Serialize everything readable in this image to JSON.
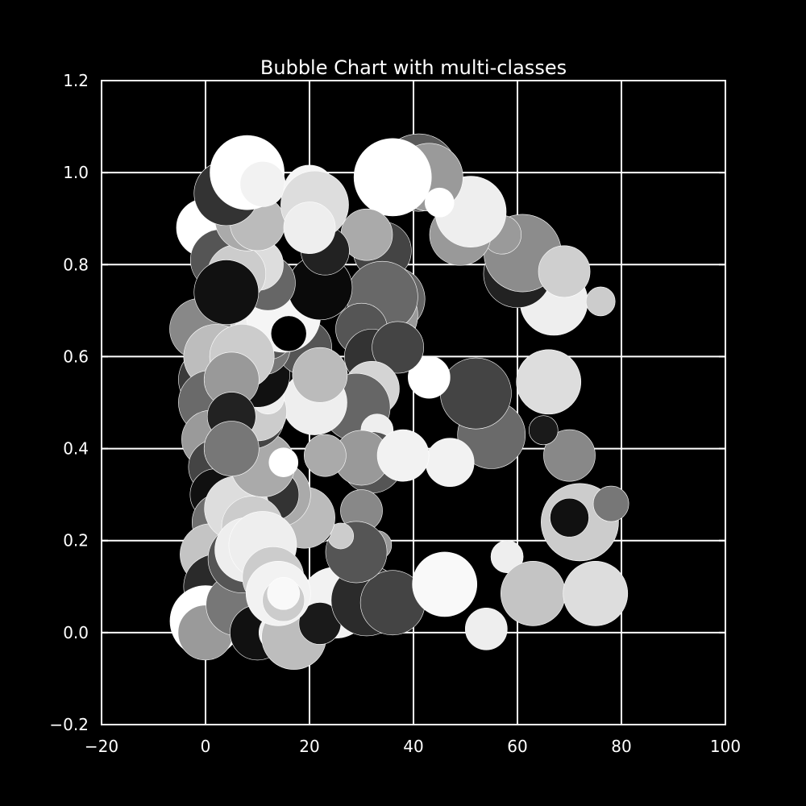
{
  "chart_data": {
    "type": "scatter",
    "title": "Bubble Chart with multi-classes",
    "xlabel": "",
    "ylabel": "",
    "xlim": [
      -20,
      100
    ],
    "ylim": [
      -0.2,
      1.2
    ],
    "xticks": [
      -20,
      0,
      20,
      40,
      60,
      80,
      100
    ],
    "yticks": [
      -0.2,
      0.0,
      0.2,
      0.4,
      0.6,
      0.8,
      1.0,
      1.2
    ],
    "xtick_labels": [
      "−20",
      "0",
      "20",
      "40",
      "60",
      "80",
      "100"
    ],
    "ytick_labels": [
      "−0.2",
      "0.0",
      "0.2",
      "0.4",
      "0.6",
      "0.8",
      "1.0",
      "1.2"
    ],
    "grid": true,
    "background": "#000000",
    "bubble_style": "grayscale fill, thin white edge; size encodes third value",
    "points": [
      {
        "x": 1,
        "y": 0.55,
        "size": 40,
        "gray": "#3a3a3a"
      },
      {
        "x": 0,
        "y": 0.88,
        "size": 36,
        "gray": "#ffffff"
      },
      {
        "x": 3,
        "y": 0.81,
        "size": 38,
        "gray": "#555555"
      },
      {
        "x": 6,
        "y": 0.7,
        "size": 36,
        "gray": "#cfcfcf"
      },
      {
        "x": -1,
        "y": 0.66,
        "size": 38,
        "gray": "#888888"
      },
      {
        "x": 2,
        "y": 0.6,
        "size": 40,
        "gray": "#bdbdbd"
      },
      {
        "x": 1,
        "y": 0.5,
        "size": 40,
        "gray": "#6a6a6a"
      },
      {
        "x": 1,
        "y": 0.42,
        "size": 36,
        "gray": "#9a9a9a"
      },
      {
        "x": 2,
        "y": 0.36,
        "size": 34,
        "gray": "#444444"
      },
      {
        "x": 2,
        "y": 0.3,
        "size": 32,
        "gray": "#101010"
      },
      {
        "x": 3,
        "y": 0.24,
        "size": 36,
        "gray": "#6f6f6f"
      },
      {
        "x": 1,
        "y": 0.17,
        "size": 38,
        "gray": "#c4c4c4"
      },
      {
        "x": 2,
        "y": 0.1,
        "size": 40,
        "gray": "#2a2a2a"
      },
      {
        "x": 0,
        "y": 0.025,
        "size": 44,
        "gray": "#ffffff"
      },
      {
        "x": 0,
        "y": 0.0,
        "size": 34,
        "gray": "#9a9a9a"
      },
      {
        "x": 6,
        "y": 0.06,
        "size": 38,
        "gray": "#777777"
      },
      {
        "x": 10,
        "y": 0.0,
        "size": 34,
        "gray": "#111111"
      },
      {
        "x": 14,
        "y": 0.0,
        "size": 24,
        "gray": "#eeeeee"
      },
      {
        "x": 17,
        "y": -0.01,
        "size": 40,
        "gray": "#bdbdbd"
      },
      {
        "x": 25,
        "y": 0.065,
        "size": 44,
        "gray": "#f2f2f2"
      },
      {
        "x": 22,
        "y": 0.02,
        "size": 26,
        "gray": "#1a1a1a"
      },
      {
        "x": 31,
        "y": 0.07,
        "size": 44,
        "gray": "#2b2b2b"
      },
      {
        "x": 36,
        "y": 0.065,
        "size": 40,
        "gray": "#444444"
      },
      {
        "x": 46,
        "y": 0.105,
        "size": 40,
        "gray": "#f9f9f9"
      },
      {
        "x": 54,
        "y": 0.008,
        "size": 26,
        "gray": "#eeeeee"
      },
      {
        "x": 58,
        "y": 0.165,
        "size": 20,
        "gray": "#eeeeee"
      },
      {
        "x": 63,
        "y": 0.085,
        "size": 40,
        "gray": "#c4c4c4"
      },
      {
        "x": 75,
        "y": 0.085,
        "size": 40,
        "gray": "#dddddd"
      },
      {
        "x": 72,
        "y": 0.24,
        "size": 48,
        "gray": "#cccccc"
      },
      {
        "x": 70,
        "y": 0.25,
        "size": 24,
        "gray": "#111111"
      },
      {
        "x": 78,
        "y": 0.28,
        "size": 22,
        "gray": "#777777"
      },
      {
        "x": 70,
        "y": 0.385,
        "size": 32,
        "gray": "#888888"
      },
      {
        "x": 65,
        "y": 0.44,
        "size": 18,
        "gray": "#1a1a1a"
      },
      {
        "x": 55,
        "y": 0.43,
        "size": 42,
        "gray": "#6a6a6a"
      },
      {
        "x": 52,
        "y": 0.52,
        "size": 44,
        "gray": "#444444"
      },
      {
        "x": 66,
        "y": 0.545,
        "size": 40,
        "gray": "#dddddd"
      },
      {
        "x": 47,
        "y": 0.37,
        "size": 30,
        "gray": "#f2f2f2"
      },
      {
        "x": 43,
        "y": 0.555,
        "size": 26,
        "gray": "#ffffff"
      },
      {
        "x": 67,
        "y": 0.72,
        "size": 42,
        "gray": "#eeeeee"
      },
      {
        "x": 76,
        "y": 0.72,
        "size": 18,
        "gray": "#cccccc"
      },
      {
        "x": 60,
        "y": 0.78,
        "size": 42,
        "gray": "#222222"
      },
      {
        "x": 61,
        "y": 0.825,
        "size": 48,
        "gray": "#8c8c8c"
      },
      {
        "x": 69,
        "y": 0.785,
        "size": 32,
        "gray": "#cfcfcf"
      },
      {
        "x": 57,
        "y": 0.865,
        "size": 24,
        "gray": "#9a9a9a"
      },
      {
        "x": 49,
        "y": 0.865,
        "size": 38,
        "gray": "#999999"
      },
      {
        "x": 51,
        "y": 0.915,
        "size": 44,
        "gray": "#eeeeee"
      },
      {
        "x": 41,
        "y": 1.0,
        "size": 48,
        "gray": "#5a5a5a"
      },
      {
        "x": 43,
        "y": 0.99,
        "size": 42,
        "gray": "#9a9a9a"
      },
      {
        "x": 45,
        "y": 0.935,
        "size": 18,
        "gray": "#ffffff"
      },
      {
        "x": 36,
        "y": 0.99,
        "size": 48,
        "gray": "#ffffff"
      },
      {
        "x": 34,
        "y": 0.83,
        "size": 36,
        "gray": "#444444"
      },
      {
        "x": 31,
        "y": 0.865,
        "size": 32,
        "gray": "#aaaaaa"
      },
      {
        "x": 36,
        "y": 0.725,
        "size": 40,
        "gray": "#666666"
      },
      {
        "x": 34,
        "y": 0.69,
        "size": 44,
        "gray": "#999999"
      },
      {
        "x": 34,
        "y": 0.73,
        "size": 44,
        "gray": "#686868"
      },
      {
        "x": 30,
        "y": 0.66,
        "size": 32,
        "gray": "#555555"
      },
      {
        "x": 32,
        "y": 0.6,
        "size": 34,
        "gray": "#333333"
      },
      {
        "x": 37,
        "y": 0.62,
        "size": 32,
        "gray": "#444444"
      },
      {
        "x": 32,
        "y": 0.53,
        "size": 34,
        "gray": "#d4d4d4"
      },
      {
        "x": 29,
        "y": 0.49,
        "size": 42,
        "gray": "#666666"
      },
      {
        "x": 33,
        "y": 0.44,
        "size": 20,
        "gray": "#eeeeee"
      },
      {
        "x": 32,
        "y": 0.37,
        "size": 38,
        "gray": "#555555"
      },
      {
        "x": 30,
        "y": 0.38,
        "size": 34,
        "gray": "#999999"
      },
      {
        "x": 38,
        "y": 0.385,
        "size": 32,
        "gray": "#f2f2f2"
      },
      {
        "x": 23,
        "y": 0.385,
        "size": 26,
        "gray": "#aaaaaa"
      },
      {
        "x": 30,
        "y": 0.265,
        "size": 26,
        "gray": "#888888"
      },
      {
        "x": 33,
        "y": 0.19,
        "size": 18,
        "gray": "#999999"
      },
      {
        "x": 29,
        "y": 0.175,
        "size": 38,
        "gray": "#555555"
      },
      {
        "x": 26,
        "y": 0.21,
        "size": 16,
        "gray": "#cccccc"
      },
      {
        "x": 22,
        "y": 0.22,
        "size": 14,
        "gray": "#000000"
      },
      {
        "x": 19,
        "y": 0.25,
        "size": 38,
        "gray": "#bbbbbb"
      },
      {
        "x": 14,
        "y": 0.3,
        "size": 40,
        "gray": "#aaaaaa"
      },
      {
        "x": 13,
        "y": 0.3,
        "size": 32,
        "gray": "#333333"
      },
      {
        "x": 6,
        "y": 0.27,
        "size": 40,
        "gray": "#dddddd"
      },
      {
        "x": 11,
        "y": 0.365,
        "size": 40,
        "gray": "#aaaaaa"
      },
      {
        "x": 15,
        "y": 0.37,
        "size": 18,
        "gray": "#ffffff"
      },
      {
        "x": 9,
        "y": 0.23,
        "size": 38,
        "gray": "#cccccc"
      },
      {
        "x": 7,
        "y": 0.16,
        "size": 42,
        "gray": "#555555"
      },
      {
        "x": 8,
        "y": 0.18,
        "size": 40,
        "gray": "#eeeeee"
      },
      {
        "x": 11,
        "y": 0.19,
        "size": 42,
        "gray": "#eeeeee"
      },
      {
        "x": 13,
        "y": 0.12,
        "size": 38,
        "gray": "#cccccc"
      },
      {
        "x": 14,
        "y": 0.085,
        "size": 40,
        "gray": "#f2f2f2"
      },
      {
        "x": 15,
        "y": 0.07,
        "size": 26,
        "gray": "#cccccc"
      },
      {
        "x": 15,
        "y": 0.085,
        "size": 20,
        "gray": "#f9f9f9"
      },
      {
        "x": 21,
        "y": 0.5,
        "size": 40,
        "gray": "#eeeeee"
      },
      {
        "x": 9,
        "y": 0.47,
        "size": 40,
        "gray": "#444444"
      },
      {
        "x": 10,
        "y": 0.48,
        "size": 36,
        "gray": "#cccccc"
      },
      {
        "x": 12,
        "y": 0.51,
        "size": 20,
        "gray": "#eeeeee"
      },
      {
        "x": 10,
        "y": 0.56,
        "size": 40,
        "gray": "#111111"
      },
      {
        "x": 19,
        "y": 0.62,
        "size": 34,
        "gray": "#555555"
      },
      {
        "x": 11,
        "y": 0.62,
        "size": 34,
        "gray": "#777777"
      },
      {
        "x": 12,
        "y": 0.65,
        "size": 32,
        "gray": "#555555"
      },
      {
        "x": 11,
        "y": 0.68,
        "size": 34,
        "gray": "#eeeeee"
      },
      {
        "x": 15,
        "y": 0.69,
        "size": 46,
        "gray": "#f5f5f5"
      },
      {
        "x": 16,
        "y": 0.65,
        "size": 22,
        "gray": "#000000"
      },
      {
        "x": 22,
        "y": 0.75,
        "size": 40,
        "gray": "#0a0a0a"
      },
      {
        "x": 23,
        "y": 0.83,
        "size": 30,
        "gray": "#222222"
      },
      {
        "x": 12,
        "y": 0.76,
        "size": 34,
        "gray": "#666666"
      },
      {
        "x": 10,
        "y": 0.8,
        "size": 32,
        "gray": "#dddddd"
      },
      {
        "x": 6,
        "y": 0.78,
        "size": 36,
        "gray": "#cccccc"
      },
      {
        "x": 4,
        "y": 0.74,
        "size": 40,
        "gray": "#111111"
      },
      {
        "x": 7,
        "y": 0.6,
        "size": 40,
        "gray": "#cccccc"
      },
      {
        "x": 5,
        "y": 0.55,
        "size": 34,
        "gray": "#999999"
      },
      {
        "x": 5,
        "y": 0.47,
        "size": 30,
        "gray": "#222222"
      },
      {
        "x": 8,
        "y": 0.9,
        "size": 40,
        "gray": "#aaaaaa"
      },
      {
        "x": 10,
        "y": 0.89,
        "size": 34,
        "gray": "#bbbbbb"
      },
      {
        "x": 4,
        "y": 0.955,
        "size": 40,
        "gray": "#333333"
      },
      {
        "x": 8,
        "y": 1.0,
        "size": 46,
        "gray": "#ffffff"
      },
      {
        "x": 11,
        "y": 0.975,
        "size": 28,
        "gray": "#f2f2f2"
      },
      {
        "x": 20,
        "y": 0.96,
        "size": 32,
        "gray": "#f5f5f5"
      },
      {
        "x": 21,
        "y": 0.93,
        "size": 42,
        "gray": "#dddddd"
      },
      {
        "x": 20,
        "y": 0.88,
        "size": 32,
        "gray": "#eeeeee"
      },
      {
        "x": 22,
        "y": 0.56,
        "size": 34,
        "gray": "#bbbbbb"
      },
      {
        "x": 5,
        "y": 0.4,
        "size": 34,
        "gray": "#777777"
      }
    ]
  }
}
